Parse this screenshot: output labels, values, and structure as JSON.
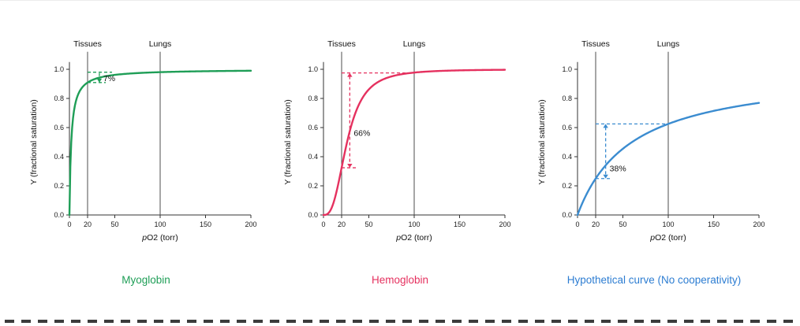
{
  "page": {
    "background": "#ffffff",
    "top_border_color": "#ececec",
    "bottom_dash_color": "#3c3c3c"
  },
  "chart_data": [
    {
      "id": "myoglobin",
      "type": "line",
      "title": "Myoglobin",
      "title_color": "#1f9e57",
      "color": "#1f9e57",
      "xlabel": "pO2 (torr)",
      "xlabel_prefix": "p",
      "xlabel_suffix": "O2 (torr)",
      "ylabel": "Y (fractional saturation)",
      "xlim": [
        0,
        200
      ],
      "ylim": [
        0,
        1.05
      ],
      "x_ticks": [
        0,
        20,
        50,
        100,
        150,
        200
      ],
      "y_ticks": [
        "0.0",
        "0.2",
        "0.4",
        "0.6",
        "0.8",
        "1.0"
      ],
      "model": {
        "equation": "hill",
        "p50": 2,
        "n": 1
      },
      "points": {
        "x": [
          0,
          1,
          2,
          5,
          10,
          20,
          30,
          50,
          100,
          150,
          200
        ],
        "y": [
          0,
          0.33,
          0.5,
          0.71,
          0.83,
          0.91,
          0.94,
          0.96,
          0.98,
          0.99,
          0.99
        ]
      },
      "reference_lines": [
        {
          "label": "Tissues",
          "x": 20
        },
        {
          "label": "Lungs",
          "x": 100
        }
      ],
      "y_at_tissues": 0.91,
      "y_at_lungs": 0.98,
      "annotation": {
        "label": "7%",
        "y_top": 0.98,
        "y_bottom": 0.909,
        "top_seg": [
          20,
          47
        ],
        "bottom_seg": [
          20,
          40
        ],
        "arrow_x": 33,
        "label_y": 0.935,
        "heads": "down"
      }
    },
    {
      "id": "hemoglobin",
      "type": "line",
      "title": "Hemoglobin",
      "title_color": "#e5315f",
      "color": "#e5315f",
      "xlabel": "pO2 (torr)",
      "xlabel_prefix": "p",
      "xlabel_suffix": "O2 (torr)",
      "ylabel": "Y (fractional saturation)",
      "xlim": [
        0,
        200
      ],
      "ylim": [
        0,
        1.05
      ],
      "x_ticks": [
        0,
        20,
        50,
        100,
        150,
        200
      ],
      "y_ticks": [
        "0.0",
        "0.2",
        "0.4",
        "0.6",
        "0.8",
        "1.0"
      ],
      "model": {
        "equation": "hill",
        "p50": 26,
        "n": 2.8
      },
      "points": {
        "x": [
          0,
          10,
          20,
          26,
          30,
          40,
          50,
          75,
          100,
          150,
          200
        ],
        "y": [
          0,
          0.06,
          0.32,
          0.5,
          0.6,
          0.77,
          0.86,
          0.95,
          0.98,
          0.99,
          1.0
        ]
      },
      "reference_lines": [
        {
          "label": "Tissues",
          "x": 20
        },
        {
          "label": "Lungs",
          "x": 100
        }
      ],
      "y_at_tissues": 0.32,
      "y_at_lungs": 0.98,
      "annotation": {
        "label": "66%",
        "y_top": 0.975,
        "y_bottom": 0.324,
        "top_seg": [
          20,
          97
        ],
        "bottom_seg": [
          20,
          37
        ],
        "arrow_x": 29,
        "label_y": 0.56,
        "heads": "both"
      }
    },
    {
      "id": "hypothetical",
      "type": "line",
      "title": "Hypothetical curve (No cooperativity)",
      "title_color": "#2d7dd2",
      "color": "#3b8cd0",
      "xlabel": "pO2 (torr)",
      "xlabel_prefix": "p",
      "xlabel_suffix": "O2 (torr)",
      "ylabel": "Y (fractional saturation)",
      "xlim": [
        0,
        200
      ],
      "ylim": [
        0,
        1.05
      ],
      "x_ticks": [
        0,
        20,
        50,
        100,
        150,
        200
      ],
      "y_ticks": [
        "0.0",
        "0.2",
        "0.4",
        "0.6",
        "0.8",
        "1.0"
      ],
      "model": {
        "equation": "hill",
        "p50": 60,
        "n": 1
      },
      "points": {
        "x": [
          0,
          20,
          50,
          100,
          150,
          200
        ],
        "y": [
          0,
          0.25,
          0.45,
          0.63,
          0.71,
          0.77
        ]
      },
      "reference_lines": [
        {
          "label": "Tissues",
          "x": 20
        },
        {
          "label": "Lungs",
          "x": 100
        }
      ],
      "y_at_tissues": 0.25,
      "y_at_lungs": 0.63,
      "annotation": {
        "label": "38%",
        "y_top": 0.625,
        "y_bottom": 0.25,
        "top_seg": [
          20,
          100
        ],
        "bottom_seg": [
          20,
          37
        ],
        "arrow_x": 31,
        "label_y": 0.315,
        "heads": "both"
      }
    }
  ]
}
